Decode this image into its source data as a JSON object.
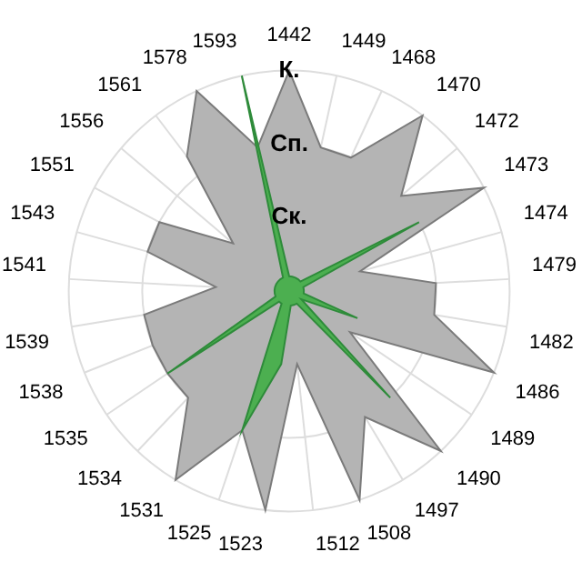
{
  "chart_data": {
    "type": "radar",
    "categories": [
      "1442",
      "1449",
      "1468",
      "1470",
      "1472",
      "1473",
      "1474",
      "1479",
      "1482",
      "1486",
      "1489",
      "1490",
      "1497",
      "1508",
      "1512",
      "1523",
      "1525",
      "1531",
      "1534",
      "1535",
      "1538",
      "1539",
      "1541",
      "1543",
      "1551",
      "1556",
      "1561",
      "1578",
      "1593"
    ],
    "series": [
      {
        "color": "#b4b4b4",
        "values": [
          3,
          2,
          2,
          3,
          2,
          3,
          1,
          2,
          2,
          3,
          1,
          3,
          2,
          3,
          1,
          3,
          2,
          3,
          2,
          2,
          2,
          2,
          1,
          2,
          2,
          1,
          2.3,
          3,
          2
        ]
      },
      {
        "color": "#4caf50",
        "values": [
          0.2,
          0.2,
          0.2,
          0.2,
          0.2,
          2,
          0.2,
          0.2,
          0.2,
          1,
          0.2,
          2,
          0.2,
          0.2,
          0.2,
          1,
          2,
          0.2,
          0.2,
          2,
          0.2,
          0.2,
          0.2,
          0.2,
          0.2,
          0.2,
          0.2,
          0.2,
          3
        ]
      }
    ],
    "ylim": [
      0,
      3
    ],
    "yticks": [
      {
        "value": 1,
        "label": "Ск."
      },
      {
        "value": 2,
        "label": "Сп."
      },
      {
        "value": 3,
        "label": "К."
      }
    ],
    "grid": true,
    "legend": false,
    "marker": "none"
  }
}
